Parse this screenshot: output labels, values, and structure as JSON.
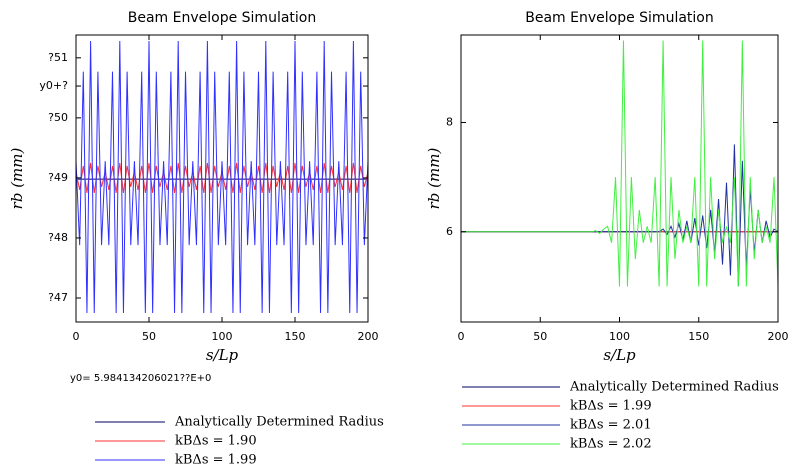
{
  "chart_data": [
    {
      "type": "line",
      "title": "Beam Envelope Simulation",
      "x_label": "s/Lp",
      "y_label": "rb (mm)",
      "annotation": "y0= 5.984134206021??E+0",
      "legend": "bottom",
      "xlim": [
        0,
        200
      ],
      "xticks": [
        0,
        50,
        100,
        150,
        200
      ],
      "ylim": [
        46.6,
        51.38
      ],
      "yticks": [
        {
          "value": 47,
          "label": "?47"
        },
        {
          "value": 48,
          "label": "?48"
        },
        {
          "value": 49,
          "label": "?49"
        },
        {
          "value": 50,
          "label": "?50"
        },
        {
          "value": 50.53,
          "label": "y0+?"
        },
        {
          "value": 51,
          "label": "?51"
        }
      ],
      "x": [
        0,
        2.5,
        5,
        7.5,
        10,
        12.5,
        15,
        17.5,
        20,
        22.5,
        25,
        27.5,
        30,
        32.5,
        35,
        37.5,
        40,
        42.5,
        45,
        47.5,
        50,
        52.5,
        55,
        57.5,
        60,
        62.5,
        65,
        67.5,
        70,
        72.5,
        75,
        77.5,
        80,
        82.5,
        85,
        87.5,
        90,
        92.5,
        95,
        97.5,
        100,
        102.5,
        105,
        107.5,
        110,
        112.5,
        115,
        117.5,
        120,
        122.5,
        125,
        127.5,
        130,
        132.5,
        135,
        137.5,
        140,
        142.5,
        145,
        147.5,
        150,
        152.5,
        155,
        157.5,
        160,
        162.5,
        165,
        167.5,
        170,
        172.5,
        175,
        177.5,
        180,
        182.5,
        185,
        187.5,
        190,
        192.5,
        195,
        197.5,
        200
      ],
      "series": [
        {
          "name": "Analytically Determined Radius",
          "color": "#000060",
          "x": [
            0,
            200
          ],
          "values": [
            48.98,
            48.98
          ]
        },
        {
          "name": "kBΔs = 1.90",
          "color": "#ff3030",
          "values": [
            49.1,
            48.8,
            49.2,
            48.75,
            49.25,
            48.75,
            49.2,
            48.85,
            49.1,
            48.8,
            49.2,
            48.75,
            49.25,
            48.75,
            49.2,
            48.85,
            49.1,
            48.8,
            49.2,
            48.75,
            49.25,
            48.75,
            49.2,
            48.85,
            49.1,
            48.8,
            49.2,
            48.75,
            49.25,
            48.75,
            49.2,
            48.85,
            49.1,
            48.8,
            49.2,
            48.75,
            49.25,
            48.75,
            49.2,
            48.85,
            49.1,
            48.8,
            49.2,
            48.75,
            49.25,
            48.75,
            49.2,
            48.85,
            49.1,
            48.8,
            49.2,
            48.75,
            49.25,
            48.75,
            49.2,
            48.85,
            49.1,
            48.8,
            49.2,
            48.75,
            49.25,
            48.75,
            49.2,
            48.85,
            49.1,
            48.8,
            49.2,
            48.75,
            49.25,
            48.75,
            49.2,
            48.85,
            49.1,
            48.8,
            49.2,
            48.75,
            49.25,
            48.75,
            49.2,
            48.85,
            49.1
          ]
        },
        {
          "name": "kBΔs = 1.99",
          "color": "#3030ff",
          "values": [
            49.28,
            47.88,
            50.77,
            46.75,
            51.28,
            46.75,
            50.77,
            47.88,
            49.28,
            47.88,
            50.77,
            46.75,
            51.28,
            46.75,
            50.77,
            47.88,
            49.28,
            47.88,
            50.77,
            46.75,
            51.28,
            46.75,
            50.77,
            47.88,
            49.28,
            47.88,
            50.77,
            46.75,
            51.28,
            46.75,
            50.77,
            47.88,
            49.28,
            47.88,
            50.77,
            46.75,
            51.28,
            46.75,
            50.77,
            47.88,
            49.28,
            47.88,
            50.77,
            46.75,
            51.28,
            46.75,
            50.77,
            47.88,
            49.28,
            47.88,
            50.77,
            46.75,
            51.28,
            46.75,
            50.77,
            47.88,
            49.28,
            47.88,
            50.77,
            46.75,
            51.28,
            46.75,
            50.77,
            47.88,
            49.28,
            47.88,
            50.77,
            46.75,
            51.28,
            46.75,
            50.77,
            47.88,
            49.28,
            47.88,
            50.77,
            46.75,
            51.28,
            46.75,
            50.77,
            47.88,
            49.28
          ]
        }
      ]
    },
    {
      "type": "line",
      "title": "Beam Envelope Simulation",
      "x_label": "s/Lp",
      "y_label": "rb (mm)",
      "legend": "bottom",
      "xlim": [
        0,
        200
      ],
      "xticks": [
        0,
        50,
        100,
        150,
        200
      ],
      "ylim": [
        4.35,
        9.6
      ],
      "yticks": [
        6,
        8
      ],
      "x": [
        0,
        2.5,
        5,
        7.5,
        10,
        12.5,
        15,
        17.5,
        20,
        22.5,
        25,
        27.5,
        30,
        32.5,
        35,
        37.5,
        40,
        42.5,
        45,
        47.5,
        50,
        52.5,
        55,
        57.5,
        60,
        62.5,
        65,
        67.5,
        70,
        72.5,
        75,
        77.5,
        80,
        82.5,
        85,
        87.5,
        90,
        92.5,
        95,
        97.5,
        100,
        102.5,
        105,
        107.5,
        110,
        112.5,
        115,
        117.5,
        120,
        122.5,
        125,
        127.5,
        130,
        132.5,
        135,
        137.5,
        140,
        142.5,
        145,
        147.5,
        150,
        152.5,
        155,
        157.5,
        160,
        162.5,
        165,
        167.5,
        170,
        172.5,
        175,
        177.5,
        180,
        182.5,
        185,
        187.5,
        190,
        192.5,
        195,
        197.5,
        200
      ],
      "series": [
        {
          "name": "Analytically Determined Radius",
          "color": "#000060",
          "x": [
            0,
            200
          ],
          "values": [
            6,
            6
          ]
        },
        {
          "name": "kBΔs = 1.99",
          "color": "#ff3030",
          "x": [
            0,
            200
          ],
          "values": [
            6,
            6
          ]
        },
        {
          "name": "kBΔs = 2.01",
          "color": "#2030a0",
          "values": [
            6,
            6,
            6,
            6,
            6,
            6,
            6,
            6,
            6,
            6,
            6,
            6,
            6,
            6,
            6,
            6,
            6,
            6,
            6,
            6,
            6,
            6,
            6,
            6,
            6,
            6,
            6,
            6,
            6,
            6,
            6,
            6,
            6,
            6,
            6,
            6,
            6,
            6,
            6,
            6,
            6,
            6,
            6,
            6,
            6,
            6,
            6,
            6,
            6,
            6,
            6,
            6.05,
            5.95,
            6.1,
            5.9,
            6.15,
            5.85,
            6.2,
            5.8,
            6.25,
            5.75,
            6.3,
            5.7,
            6.4,
            5.6,
            6.6,
            5.4,
            6.9,
            5.2,
            7.6,
            5.0,
            7.3,
            5.3,
            6.8,
            5.6,
            6.4,
            5.8,
            6.2,
            5.9,
            6.05,
            6.0
          ]
        },
        {
          "name": "kBΔs = 2.02",
          "color": "#40f040",
          "values": [
            6,
            6,
            6,
            6,
            6,
            6,
            6,
            6,
            6,
            6,
            6,
            6,
            6,
            6,
            6,
            6,
            6,
            6,
            6,
            6,
            6,
            6,
            6,
            6,
            6,
            6,
            6,
            6,
            6,
            6,
            6,
            6,
            6,
            6,
            6.02,
            5.97,
            6.05,
            6.1,
            5.8,
            7.0,
            5.0,
            9.5,
            5.0,
            7.0,
            5.5,
            6.4,
            5.8,
            6.1,
            5.8,
            7.0,
            5.0,
            9.5,
            5.0,
            7.0,
            5.5,
            6.4,
            5.8,
            6.1,
            5.8,
            7.0,
            5.0,
            9.5,
            5.0,
            7.0,
            5.5,
            6.4,
            5.8,
            6.1,
            5.8,
            7.0,
            5.0,
            9.5,
            5.0,
            7.0,
            5.5,
            6.4,
            5.8,
            6.1,
            5.8,
            7.0,
            5.0
          ]
        }
      ]
    }
  ]
}
